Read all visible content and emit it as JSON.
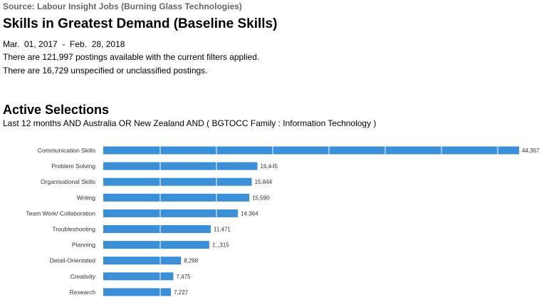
{
  "header": {
    "source": "Source: Labour Insight Jobs (Burning Glass Technologies)",
    "title": "Skills in Greatest Demand (Baseline Skills)",
    "date_range": "Mar.  01, 2017  -  Feb.  28, 2018",
    "postings_available": "There are 121,997 postings available with the current filters applied.",
    "postings_unspecified": "There are 16,729 unspecified or unclassified postings."
  },
  "selections": {
    "title": "Active Selections",
    "filters": "Last 12 months AND Australia OR New Zealand AND ( BGTOCC Family : Information Technology )"
  },
  "colors": {
    "bar": "#3A8FD6",
    "gridline": "#ffffff"
  },
  "chart_data": {
    "type": "bar",
    "orientation": "horizontal",
    "categories": [
      "Communication Skills",
      "Problem Solving",
      "Organisational Skills",
      "Writing",
      "Team Work/ Collaboration",
      "Troubleshooting",
      "Planning",
      "Detail-Orientated",
      "Creativity",
      "Research"
    ],
    "values": [
      44367,
      16445,
      15844,
      15590,
      14364,
      11471,
      11315,
      8298,
      7475,
      7227
    ],
    "data_labels": [
      "44,367",
      "16,445",
      "15,844",
      "15,590",
      "14,364",
      "11,471",
      "11,315",
      "8,298",
      "7,475",
      "7,227"
    ],
    "xlim": [
      0,
      45000
    ],
    "vertical_gridlines": true
  }
}
